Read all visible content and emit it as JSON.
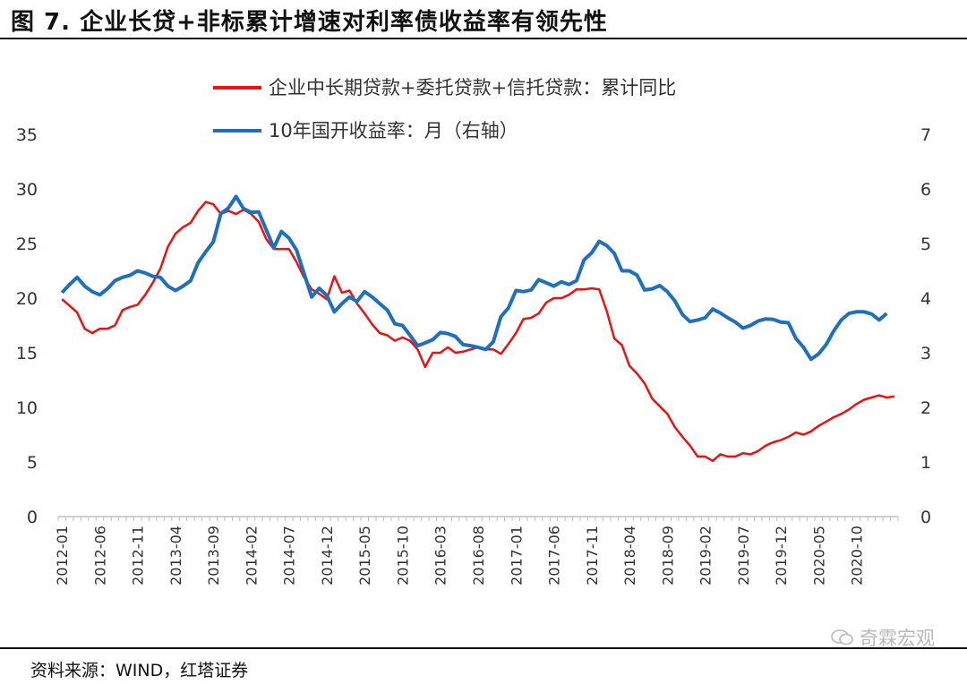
{
  "figure": {
    "title": "图 7. 企业长贷+非标累计增速对利率债收益率有领先性",
    "source": "资料来源：WIND，红塔证券",
    "watermark": "奇霖宏观"
  },
  "chart_data": {
    "type": "line",
    "title": "图 7. 企业长贷+非标累计增速对利率债收益率有领先性",
    "y_left": {
      "min": 0,
      "max": 35,
      "ticks": [
        0,
        5,
        10,
        15,
        20,
        25,
        30,
        35
      ]
    },
    "y_right": {
      "min": 0,
      "max": 7,
      "ticks": [
        0,
        1,
        2,
        3,
        4,
        5,
        6,
        7
      ]
    },
    "x_tick_labels": [
      "2012-01",
      "2012-06",
      "2012-11",
      "2013-04",
      "2013-09",
      "2014-02",
      "2014-07",
      "2014-12",
      "2015-05",
      "2015-10",
      "2016-03",
      "2016-08",
      "2017-01",
      "2017-06",
      "2017-11",
      "2018-04",
      "2018-09",
      "2019-02",
      "2019-07",
      "2019-12",
      "2020-05",
      "2020-10"
    ],
    "x_start": "2012-01",
    "legend": [
      "企业中长期贷款+委托贷款+信托贷款：累计同比",
      "10年国开收益率：月（右轴）"
    ],
    "series": [
      {
        "name": "企业中长期贷款+委托贷款+信托贷款：累计同比",
        "axis": "left",
        "color": "#ee1111",
        "values": [
          19.9,
          19.3,
          18.7,
          17.2,
          16.8,
          17.2,
          17.2,
          17.5,
          18.9,
          19.2,
          19.4,
          20.3,
          21.4,
          22.7,
          24.7,
          25.9,
          26.5,
          26.9,
          28.0,
          28.8,
          28.6,
          27.7,
          28.0,
          27.7,
          28.1,
          27.7,
          27.0,
          25.4,
          24.5,
          24.5,
          24.5,
          23.3,
          21.9,
          20.8,
          20.4,
          19.9,
          22.0,
          20.5,
          20.7,
          19.5,
          18.6,
          17.6,
          16.8,
          16.6,
          16.1,
          16.4,
          16.1,
          15.3,
          13.7,
          15.0,
          15.0,
          15.5,
          15.0,
          15.1,
          15.3,
          15.5,
          15.3,
          15.3,
          14.9,
          15.8,
          16.8,
          18.1,
          18.2,
          18.6,
          19.6,
          20.0,
          20.0,
          20.3,
          20.8,
          20.8,
          20.9,
          20.8,
          18.8,
          16.3,
          15.7,
          13.8,
          13.1,
          12.2,
          10.8,
          10.1,
          9.4,
          8.2,
          7.3,
          6.5,
          5.5,
          5.5,
          5.1,
          5.7,
          5.5,
          5.5,
          5.8,
          5.7,
          6.0,
          6.5,
          6.8,
          7.0,
          7.3,
          7.7,
          7.5,
          7.8,
          8.3,
          8.7,
          9.1,
          9.4,
          9.8,
          10.3,
          10.7,
          10.9,
          11.1,
          10.9,
          11.0
        ]
      },
      {
        "name": "10年国开收益率：月（右轴）",
        "axis": "right",
        "color": "#1f6fbf",
        "values": [
          4.1,
          4.25,
          4.38,
          4.22,
          4.12,
          4.06,
          4.17,
          4.32,
          4.38,
          4.42,
          4.5,
          4.46,
          4.4,
          4.38,
          4.22,
          4.14,
          4.22,
          4.32,
          4.65,
          4.85,
          5.03,
          5.55,
          5.65,
          5.86,
          5.64,
          5.57,
          5.58,
          5.25,
          4.92,
          5.22,
          5.1,
          4.88,
          4.45,
          4.02,
          4.18,
          4.05,
          3.75,
          3.9,
          4.02,
          3.94,
          4.12,
          4.02,
          3.9,
          3.78,
          3.53,
          3.5,
          3.32,
          3.13,
          3.18,
          3.24,
          3.37,
          3.35,
          3.3,
          3.15,
          3.13,
          3.1,
          3.06,
          3.2,
          3.66,
          3.82,
          4.14,
          4.12,
          4.15,
          4.34,
          4.28,
          4.22,
          4.3,
          4.25,
          4.32,
          4.7,
          4.83,
          5.04,
          4.96,
          4.82,
          4.5,
          4.5,
          4.42,
          4.15,
          4.17,
          4.23,
          4.12,
          3.95,
          3.7,
          3.57,
          3.6,
          3.64,
          3.8,
          3.73,
          3.64,
          3.56,
          3.45,
          3.5,
          3.58,
          3.62,
          3.61,
          3.56,
          3.55,
          3.26,
          3.1,
          2.88,
          2.98,
          3.15,
          3.4,
          3.6,
          3.72,
          3.75,
          3.75,
          3.71,
          3.6,
          3.72
        ]
      }
    ]
  }
}
